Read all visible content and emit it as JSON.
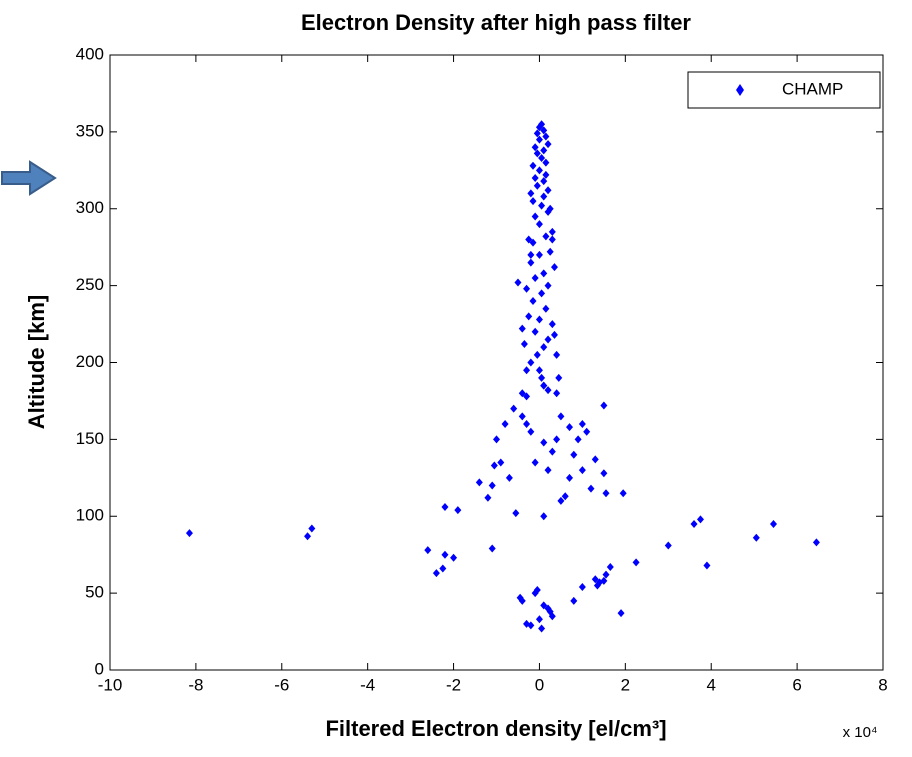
{
  "chart_data": {
    "type": "scatter",
    "title": "Electron Density after high pass filter",
    "x_label": "Filtered Electron density [el/cm³]",
    "y_label": "Altitude [km]",
    "x_multiplier": "x 10⁴",
    "xlim": [
      -10,
      8
    ],
    "xticks": [
      -10,
      -8,
      -6,
      -4,
      -2,
      0,
      2,
      4,
      6,
      8
    ],
    "ylim": [
      0,
      400
    ],
    "yticks": [
      0,
      50,
      100,
      150,
      200,
      250,
      300,
      350,
      400
    ],
    "legend": "upper right",
    "x": [
      -8.15,
      -5.4,
      -5.3,
      -2.6,
      -2.4,
      -2.25,
      -2.2,
      -2.0,
      -2.2,
      -1.9,
      -1.1,
      -0.55,
      1.95,
      3.0,
      3.6,
      3.75,
      3.9,
      5.05,
      5.45,
      6.45,
      -0.45,
      -0.4,
      -0.1,
      -0.05,
      0.1,
      0.2,
      0.25,
      -0.3,
      -0.2,
      0.05,
      0.0,
      0.3,
      0.8,
      1.0,
      1.35,
      1.3,
      1.5,
      1.55,
      1.4,
      1.65,
      1.9,
      2.25,
      -1.4,
      -1.1,
      -1.2,
      -0.9,
      -1.05,
      -1.0,
      -0.7,
      -0.8,
      -0.6,
      -0.4,
      -0.3,
      -0.2,
      0.1,
      0.3,
      -0.1,
      0.2,
      0.1,
      0.5,
      0.6,
      0.7,
      0.8,
      0.9,
      0.7,
      1.0,
      1.2,
      1.0,
      1.1,
      1.3,
      1.5,
      1.55,
      0.4,
      0.5,
      1.5,
      0.4,
      -0.5,
      -0.3,
      -0.4,
      -0.35,
      -0.25,
      -0.3,
      -0.2,
      -0.4,
      -0.3,
      0.3,
      0.35,
      0.4,
      0.45,
      0.1,
      0.05,
      0.0,
      -0.05,
      0.1,
      0.2,
      -0.1,
      0.0,
      0.15,
      -0.15,
      0.05,
      0.2,
      -0.1,
      0.1,
      0.35,
      -0.2,
      0.0,
      0.25,
      -0.15,
      0.15,
      -0.25,
      0.3,
      0.0,
      -0.1,
      0.2,
      0.05,
      -0.15,
      0.1,
      0.2,
      -0.05,
      0.1,
      -0.1,
      0.15,
      0.0,
      -0.15,
      0.15,
      0.05,
      -0.05,
      0.1,
      -0.1,
      0.2,
      0.0,
      0.15,
      -0.05,
      0.1,
      0.0,
      0.05,
      -0.2,
      0.25,
      0.3,
      -0.2,
      0.1,
      0.2
    ],
    "series": [
      {
        "name": "CHAMP",
        "color": "#0000ff",
        "values": [
          89,
          87,
          92,
          78,
          63,
          66,
          75,
          73,
          106,
          104,
          79,
          102,
          115,
          81,
          95,
          98,
          68,
          86,
          95,
          83,
          47,
          45,
          50,
          52,
          42,
          40,
          38,
          30,
          29,
          27,
          33,
          35,
          45,
          54,
          55,
          59,
          58,
          62,
          57,
          67,
          37,
          70,
          122,
          120,
          112,
          135,
          133,
          150,
          125,
          160,
          170,
          165,
          160,
          155,
          148,
          142,
          135,
          130,
          100,
          110,
          113,
          125,
          140,
          150,
          158,
          130,
          118,
          160,
          155,
          137,
          128,
          115,
          180,
          165,
          172,
          150,
          252,
          248,
          222,
          212,
          230,
          195,
          200,
          180,
          178,
          225,
          218,
          205,
          190,
          185,
          190,
          195,
          205,
          210,
          215,
          220,
          228,
          235,
          240,
          245,
          250,
          255,
          258,
          262,
          265,
          270,
          272,
          278,
          282,
          280,
          285,
          290,
          295,
          298,
          302,
          305,
          308,
          312,
          315,
          318,
          320,
          322,
          325,
          328,
          330,
          333,
          336,
          338,
          340,
          342,
          345,
          347,
          349,
          351,
          353,
          355,
          310,
          300,
          280,
          270,
          185,
          182
        ]
      }
    ]
  }
}
